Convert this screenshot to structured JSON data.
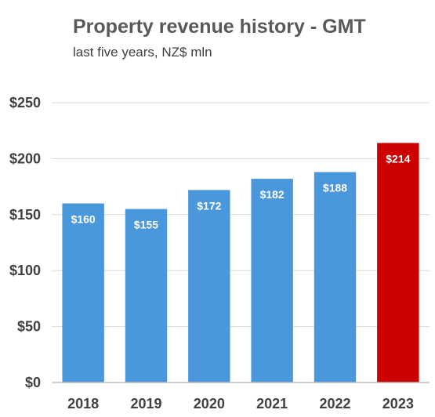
{
  "chart_data": {
    "type": "bar",
    "title": "Property revenue history - GMT",
    "subtitle": "last five years, NZ$ mln",
    "categories": [
      "2018",
      "2019",
      "2020",
      "2021",
      "2022",
      "2023"
    ],
    "values": [
      160,
      155,
      172,
      182,
      188,
      214
    ],
    "data_labels": [
      "$160",
      "$155",
      "$172",
      "$182",
      "$188",
      "$214"
    ],
    "ylim": [
      0,
      250
    ],
    "yticks": [
      0,
      50,
      100,
      150,
      200,
      250
    ],
    "ytick_labels": [
      "$0",
      "$50",
      "$100",
      "$150",
      "$200",
      "$250"
    ],
    "grid": true,
    "colors": {
      "default_bar": "#4a97dc",
      "highlight_bar": "#cc0000"
    },
    "highlight_index": 5
  }
}
